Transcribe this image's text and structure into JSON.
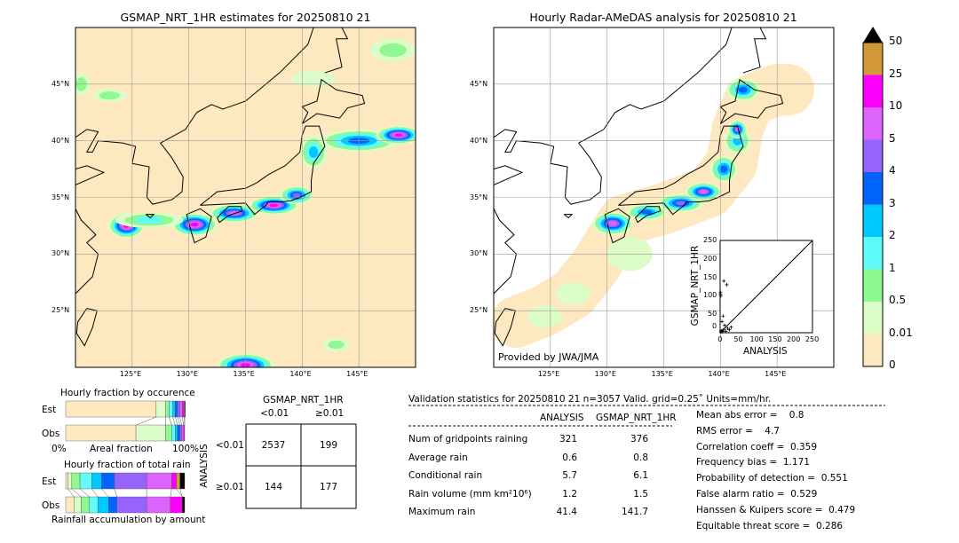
{
  "chart_data": [
    {
      "type": "heatmap",
      "title": "GSMAP_NRT_1HR estimates for 20250810 21",
      "lon_ticks": [
        "125°E",
        "130°E",
        "135°E",
        "140°E",
        "145°E"
      ],
      "lat_ticks": [
        "45°N",
        "40°N",
        "35°N",
        "30°N",
        "25°N"
      ],
      "lon_range": [
        120,
        150
      ],
      "lat_range": [
        20,
        50
      ]
    },
    {
      "type": "heatmap",
      "title": "Hourly Radar-AMeDAS analysis for 20250810 21",
      "lon_ticks": [
        "125°E",
        "130°E",
        "135°E",
        "140°E",
        "145°E"
      ],
      "lat_ticks": [
        "45°N",
        "40°N",
        "35°N",
        "30°N",
        "25°N"
      ],
      "lon_range": [
        120,
        150
      ],
      "lat_range": [
        20,
        50
      ],
      "credit": "Provided by JWA/JMA"
    },
    {
      "type": "scatter",
      "xlabel": "ANALYSIS",
      "ylabel": "GSMAP_NRT_1HR",
      "xlim": [
        0,
        250
      ],
      "ylim": [
        0,
        250
      ],
      "ticks": [
        "0",
        "50",
        "100",
        "150",
        "200",
        "250"
      ],
      "points": [
        [
          1,
          110
        ],
        [
          1,
          105
        ],
        [
          2,
          100
        ],
        [
          10,
          140
        ],
        [
          18,
          130
        ],
        [
          8,
          45
        ],
        [
          5,
          30
        ],
        [
          12,
          20
        ],
        [
          20,
          12
        ],
        [
          25,
          8
        ],
        [
          3,
          5
        ],
        [
          6,
          3
        ],
        [
          9,
          8
        ],
        [
          15,
          4
        ],
        [
          30,
          15
        ],
        [
          2,
          2
        ]
      ]
    },
    {
      "type": "colorbar",
      "levels": [
        "0",
        "0.01",
        "0.5",
        "1",
        "2",
        "3",
        "4",
        "5",
        "10",
        "25",
        "50"
      ],
      "colors": [
        "#fee8c0",
        "#dcfcc8",
        "#90f890",
        "#60fcfc",
        "#00c8fc",
        "#0064fc",
        "#9664fc",
        "#dc64fc",
        "#fc00fc",
        "#d09838"
      ]
    },
    {
      "type": "bar",
      "title": "Hourly fraction by occurence",
      "rows": [
        "Est",
        "Obs"
      ],
      "xlabel": "Areal fraction",
      "xmin_label": "0%",
      "xmax_label": "100%",
      "series": {
        "Est": [
          0.76,
          0.08,
          0.03,
          0.03,
          0.02,
          0.02,
          0.02,
          0.02,
          0.015,
          0.005,
          0.005
        ],
        "Obs": [
          0.59,
          0.25,
          0.05,
          0.03,
          0.02,
          0.02,
          0.015,
          0.015,
          0.01,
          0.0,
          0.0
        ]
      }
    },
    {
      "type": "bar",
      "title": "Hourly fraction of total rain",
      "rows": [
        "Est",
        "Obs"
      ],
      "xlabel": "Rainfall accumulation by amount",
      "series": {
        "Est": [
          0.02,
          0.03,
          0.07,
          0.1,
          0.08,
          0.11,
          0.27,
          0.21,
          0.04,
          0.03,
          0.04
        ],
        "Obs": [
          0.07,
          0.06,
          0.07,
          0.07,
          0.09,
          0.07,
          0.25,
          0.2,
          0.1,
          0.0,
          0.02
        ]
      }
    }
  ],
  "contingency": {
    "title": "GSMAP_NRT_1HR",
    "col_labels": [
      "<0.01",
      "≥0.01"
    ],
    "row_title": "ANALYSIS",
    "row_labels": [
      "<0.01",
      "≥0.01"
    ],
    "cells": [
      [
        "2537",
        "199"
      ],
      [
        "144",
        "177"
      ]
    ]
  },
  "stats": {
    "header": "Validation statistics for 20250810 21  n=3057 Valid. grid=0.25˚ Units=mm/hr.",
    "col1": "ANALYSIS",
    "col2": "GSMAP_NRT_1HR",
    "rows": [
      [
        "Num of gridpoints raining",
        "321",
        "376"
      ],
      [
        "Average rain",
        "0.6",
        "0.8"
      ],
      [
        "Conditional rain",
        "5.7",
        "6.1"
      ],
      [
        "Rain volume (mm km²10⁶)",
        "1.2",
        "1.5"
      ],
      [
        "Maximum rain",
        "41.4",
        "141.7"
      ]
    ],
    "scores": [
      "Mean abs error =    0.8",
      "RMS error =    4.7",
      "Correlation coeff =  0.359",
      "Frequency bias =  1.171",
      "Probability of detection =  0.551",
      "False alarm ratio =  0.529",
      "Hanssen & Kuipers score =  0.479",
      "Equitable threat score =  0.286"
    ]
  }
}
